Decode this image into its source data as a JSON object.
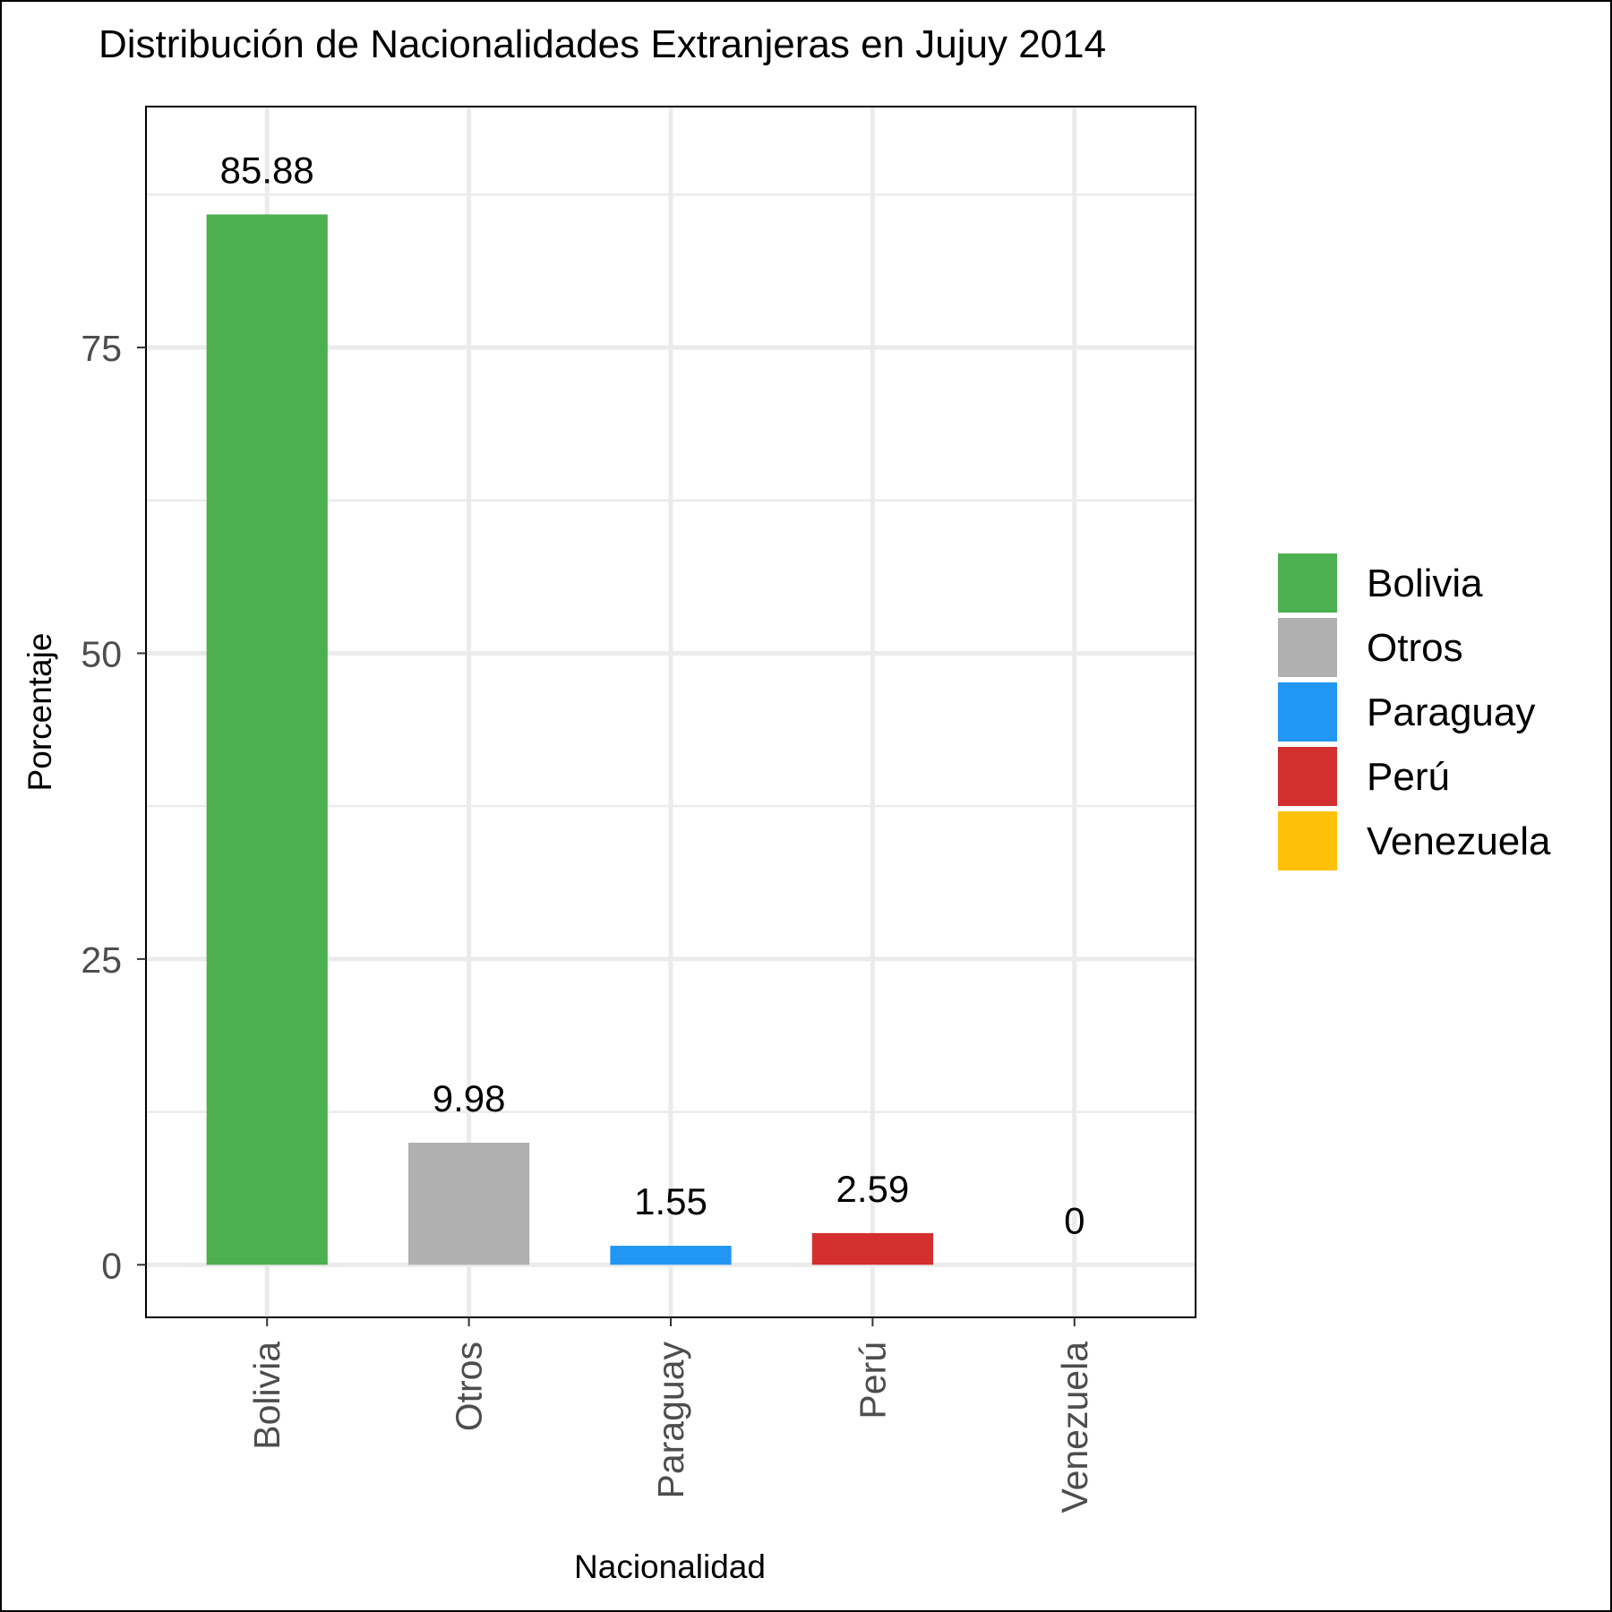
{
  "chart_data": {
    "type": "bar",
    "title": "Distribución de Nacionalidades Extranjeras en Jujuy 2014",
    "xlabel": "Nacionalidad",
    "ylabel": "Porcentaje",
    "categories": [
      "Bolivia",
      "Otros",
      "Paraguay",
      "Perú",
      "Venezuela"
    ],
    "values": [
      85.88,
      9.98,
      1.55,
      2.59,
      0
    ],
    "value_labels": [
      "85.88",
      "9.98",
      "1.55",
      "2.59",
      "0"
    ],
    "colors": [
      "#4caf50",
      "#b0b0b0",
      "#2196f3",
      "#d32f2f",
      "#ffc107"
    ],
    "ylim": [
      -4.3,
      94.7
    ],
    "y_ticks": [
      0,
      25,
      50,
      75
    ],
    "y_tick_labels": [
      "0",
      "25",
      "50",
      "75"
    ],
    "y_minor_ticks": [
      12.5,
      37.5,
      62.5,
      87.5
    ],
    "grid": true,
    "legend": {
      "position": "right",
      "items": [
        "Bolivia",
        "Otros",
        "Paraguay",
        "Perú",
        "Venezuela"
      ]
    }
  }
}
